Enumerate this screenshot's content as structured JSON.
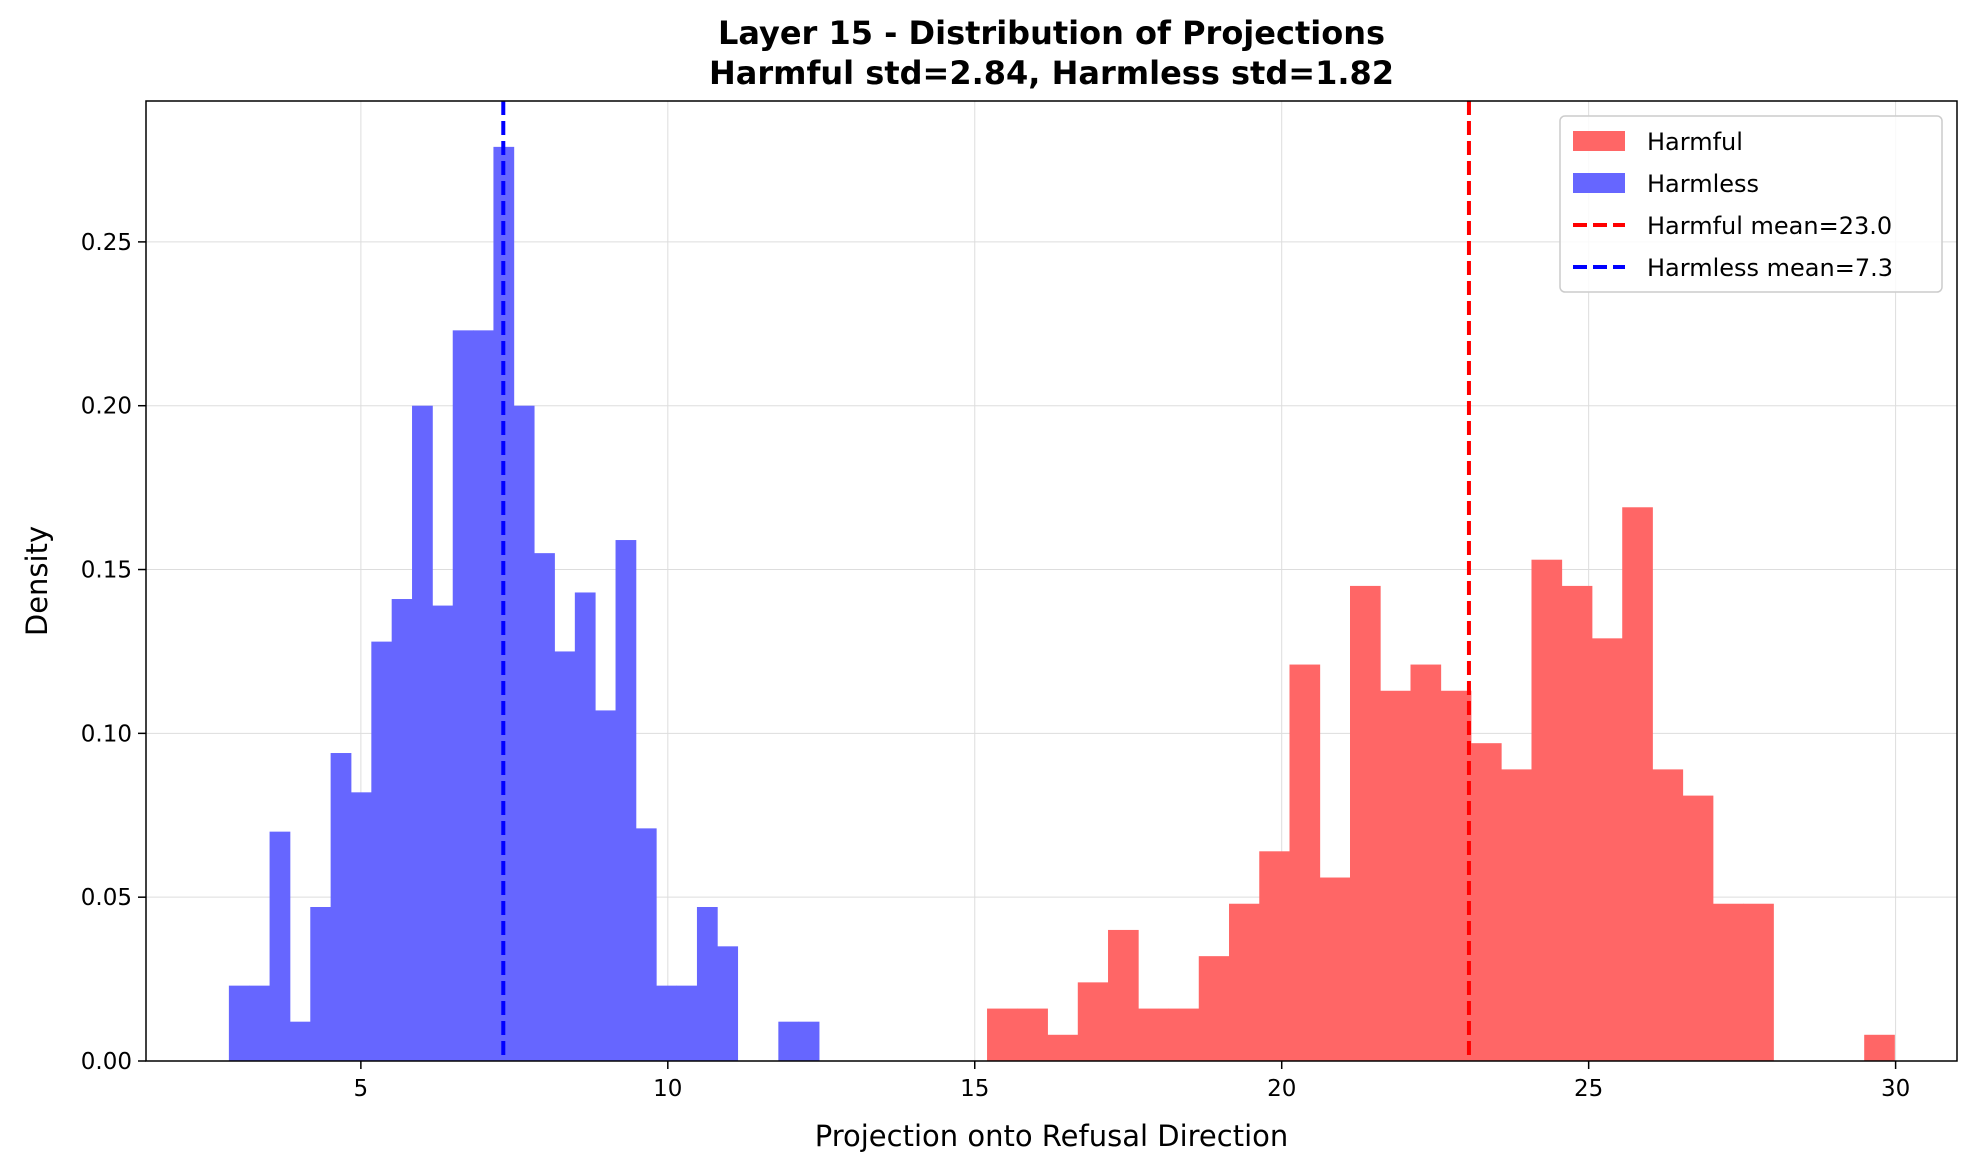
{
  "chart_data": {
    "type": "bar",
    "title": "Layer 15 - Distribution of Projections",
    "subtitle": "Harmful std=2.84, Harmless std=1.82",
    "xlabel": "Projection onto Refusal Direction",
    "ylabel": "Density",
    "xlim": [
      1.5,
      31.0
    ],
    "ylim": [
      0,
      0.293
    ],
    "xticks": [
      5,
      10,
      15,
      20,
      25,
      30
    ],
    "xtick_labels": [
      "5",
      "10",
      "15",
      "20",
      "25",
      "30"
    ],
    "yticks": [
      0,
      0.05,
      0.1,
      0.15,
      0.2,
      0.25
    ],
    "ytick_labels": [
      "0.00",
      "0.05",
      "0.10",
      "0.15",
      "0.20",
      "0.25"
    ],
    "grid": true,
    "legend_position": "top-right",
    "colors": {
      "harmful_fill": "#ff6666",
      "harmless_fill": "#6666ff",
      "harmful_mean_line": "#ff0000",
      "harmless_mean_line": "#0000ff"
    },
    "series": [
      {
        "name": "Harmful",
        "kind": "histogram",
        "bin_start": 15.2,
        "bin_width": 0.4927,
        "values": [
          0.016,
          0.016,
          0.008,
          0.024,
          0.04,
          0.016,
          0.016,
          0.032,
          0.048,
          0.064,
          0.121,
          0.056,
          0.145,
          0.113,
          0.121,
          0.113,
          0.097,
          0.089,
          0.153,
          0.145,
          0.129,
          0.169,
          0.089,
          0.081,
          0.048,
          0.048,
          0.0,
          0.0,
          0.0,
          0.008
        ]
      },
      {
        "name": "Harmless",
        "kind": "histogram",
        "bin_start": 2.85,
        "bin_width": 0.3315,
        "values": [
          0.023,
          0.023,
          0.07,
          0.012,
          0.047,
          0.094,
          0.082,
          0.128,
          0.141,
          0.2,
          0.139,
          0.223,
          0.223,
          0.279,
          0.2,
          0.155,
          0.125,
          0.143,
          0.107,
          0.159,
          0.071,
          0.023,
          0.023,
          0.047,
          0.035,
          0.0,
          0.0,
          0.012,
          0.012
        ]
      }
    ],
    "mean_lines": [
      {
        "name": "Harmful mean=23.0",
        "x": 23.05
      },
      {
        "name": "Harmless mean=7.3",
        "x": 7.32
      }
    ],
    "legend": [
      {
        "label": "Harmful",
        "style": "patch",
        "color": "#ff6666"
      },
      {
        "label": "Harmless",
        "style": "patch",
        "color": "#6666ff"
      },
      {
        "label": "Harmful mean=23.0",
        "style": "dashed",
        "color": "#ff0000"
      },
      {
        "label": "Harmless mean=7.3",
        "style": "dashed",
        "color": "#0000ff"
      }
    ]
  }
}
